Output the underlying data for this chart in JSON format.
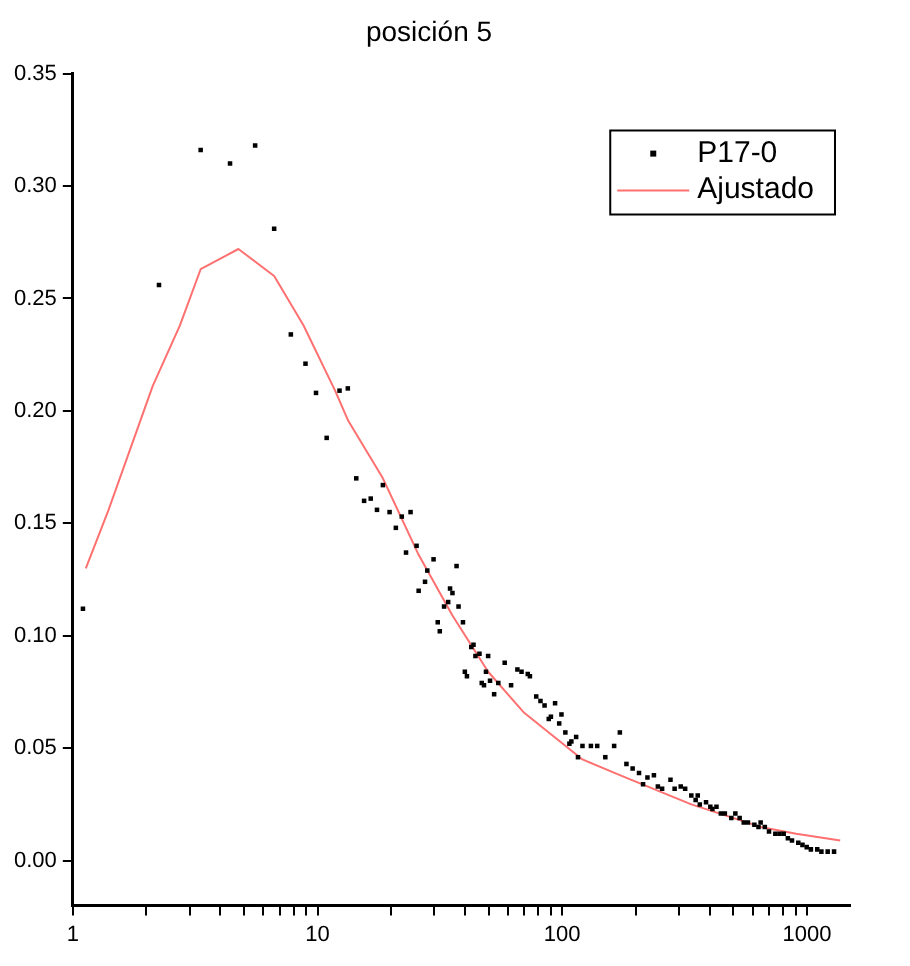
{
  "chart_data": {
    "type": "scatter",
    "title": "posición 5",
    "log": "x",
    "xlim": [
      1,
      1500
    ],
    "ylim": [
      -0.02,
      0.35
    ],
    "xticks": [
      1,
      10,
      100,
      1000,
      {
        "value": 2,
        "label": null
      },
      {
        "value": 3,
        "label": null
      },
      {
        "value": 4,
        "label": null
      },
      {
        "value": 5,
        "label": null
      },
      {
        "value": 6,
        "label": null
      },
      {
        "value": 7,
        "label": null
      },
      {
        "value": 8,
        "label": null
      },
      {
        "value": 9,
        "label": null
      },
      {
        "value": 20,
        "label": null
      },
      {
        "value": 30,
        "label": null
      },
      {
        "value": 40,
        "label": null
      },
      {
        "value": 50,
        "label": null
      },
      {
        "value": 60,
        "label": null
      },
      {
        "value": 70,
        "label": null
      },
      {
        "value": 80,
        "label": null
      },
      {
        "value": 90,
        "label": null
      },
      {
        "value": 200,
        "label": null
      },
      {
        "value": 300,
        "label": null
      },
      {
        "value": 400,
        "label": null
      },
      {
        "value": 500,
        "label": null
      },
      {
        "value": 600,
        "label": null
      },
      {
        "value": 700,
        "label": null
      },
      {
        "value": 800,
        "label": null
      },
      {
        "value": 900,
        "label": null
      }
    ],
    "yticks": [
      {
        "value": 0,
        "label": "0.00"
      },
      {
        "value": 0.05,
        "label": "0.05"
      },
      {
        "value": 0.1,
        "label": "0.10"
      },
      {
        "value": 0.15,
        "label": "0.15"
      },
      {
        "value": 0.2,
        "label": "0.20"
      },
      {
        "value": 0.25,
        "label": "0.25"
      },
      {
        "value": 0.3,
        "label": "0.30"
      },
      {
        "value": 0.35,
        "label": "0.35"
      }
    ],
    "grid": false,
    "legend": "top right",
    "marker": "square",
    "series": [
      {
        "name": "P17-0",
        "type": "scatter",
        "color": "#000000",
        "x": [
          1.1,
          2.25,
          3.33,
          4.39,
          5.56,
          6.65,
          7.78,
          8.93,
          9.86,
          10.9,
          12.3,
          13.3,
          14.4,
          15.5,
          16.5,
          17.5,
          18.5,
          19.7,
          20.9,
          22.1,
          23.0,
          24.0,
          25.4,
          25.9,
          27.5,
          28.1,
          29.8,
          31.0,
          31.6,
          32.9,
          34.2,
          34.8,
          35.6,
          37.0,
          37.7,
          39.3,
          40.0,
          40.8,
          42.5,
          43.4,
          44.2,
          45.9,
          46.9,
          47.9,
          48.8,
          49.8,
          50.7,
          52.7,
          54.8,
          58.2,
          61.8,
          65.6,
          68.2,
          72.3,
          73.8,
          78.3,
          81.5,
          84.7,
          88.1,
          89.9,
          93.5,
          97.2,
          99.3,
          103,
          107,
          109,
          114,
          116,
          121,
          131,
          139,
          150,
          163,
          172,
          183,
          194,
          206,
          214,
          223,
          237,
          246,
          256,
          277,
          288,
          305,
          318,
          337,
          351,
          358,
          365,
          387,
          403,
          411,
          427,
          445,
          462,
          491,
          510,
          531,
          552,
          574,
          610,
          634,
          647,
          673,
          700,
          743,
          773,
          804,
          836,
          869,
          922,
          959,
          998,
          1038,
          1102,
          1146,
          1216,
          1291
        ],
        "values": [
          0.112,
          0.256,
          0.316,
          0.31,
          0.318,
          0.281,
          0.234,
          0.221,
          0.208,
          0.188,
          0.209,
          0.21,
          0.17,
          0.16,
          0.161,
          0.156,
          0.167,
          0.155,
          0.148,
          0.153,
          0.137,
          0.155,
          0.14,
          0.12,
          0.124,
          0.129,
          0.134,
          0.106,
          0.102,
          0.113,
          0.115,
          0.121,
          0.119,
          0.131,
          0.113,
          0.106,
          0.084,
          0.082,
          0.095,
          0.096,
          0.091,
          0.092,
          0.079,
          0.078,
          0.084,
          0.091,
          0.08,
          0.074,
          0.079,
          0.088,
          0.078,
          0.085,
          0.084,
          0.083,
          0.082,
          0.073,
          0.071,
          0.069,
          0.063,
          0.064,
          0.07,
          0.061,
          0.065,
          0.057,
          0.052,
          0.053,
          0.055,
          0.046,
          0.051,
          0.051,
          0.051,
          0.046,
          0.051,
          0.057,
          0.043,
          0.041,
          0.039,
          0.034,
          0.037,
          0.038,
          0.033,
          0.032,
          0.036,
          0.032,
          0.033,
          0.032,
          0.029,
          0.027,
          0.029,
          0.025,
          0.026,
          0.024,
          0.023,
          0.024,
          0.021,
          0.021,
          0.019,
          0.021,
          0.019,
          0.017,
          0.017,
          0.016,
          0.015,
          0.017,
          0.015,
          0.013,
          0.012,
          0.012,
          0.012,
          0.01,
          0.009,
          0.008,
          0.007,
          0.006,
          0.005,
          0.005,
          0.004,
          0.004,
          0.004
        ]
      },
      {
        "name": "Ajustado",
        "type": "line",
        "color": "#ff7070",
        "marker": "none",
        "x": [
          1.13,
          1.4,
          2.12,
          2.74,
          3.33,
          4.75,
          6.65,
          8.77,
          11.8,
          13.3,
          18.5,
          25.9,
          35.6,
          49.8,
          69.5,
          95.4,
          121,
          172,
          337,
          647,
          904,
          1368
        ],
        "values": [
          0.13,
          0.156,
          0.211,
          0.238,
          0.263,
          0.272,
          0.26,
          0.238,
          0.209,
          0.196,
          0.17,
          0.136,
          0.109,
          0.084,
          0.066,
          0.054,
          0.045,
          0.038,
          0.025,
          0.015,
          0.012,
          0.009
        ]
      }
    ]
  }
}
